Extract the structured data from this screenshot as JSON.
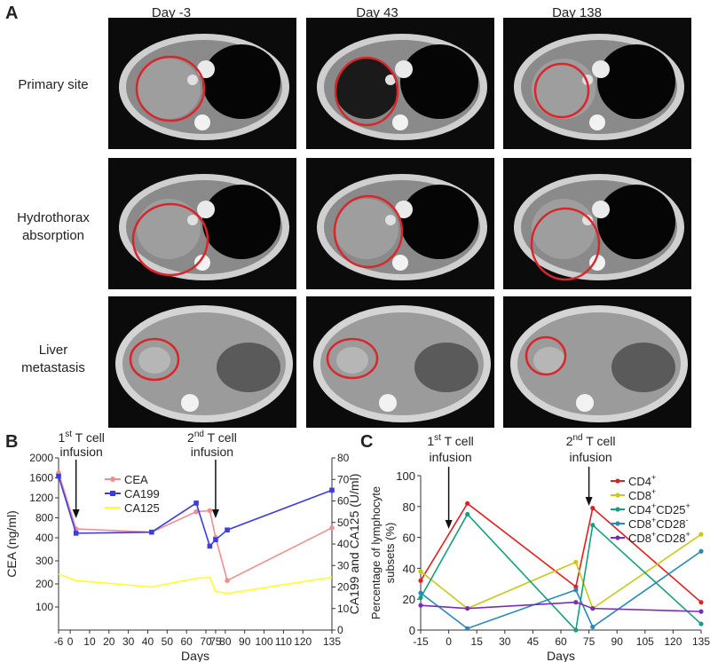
{
  "panel_a": {
    "letter": "A",
    "columns": [
      "Day -3",
      "Day 43",
      "Day 138"
    ],
    "rows": [
      {
        "label_lines": [
          "Primary site"
        ]
      },
      {
        "label_lines": [
          "Hydrothorax",
          "absorption"
        ]
      },
      {
        "label_lines": [
          "Liver",
          "metastasis"
        ]
      }
    ],
    "marker_color": "#d8262a"
  },
  "chart_data": [
    {
      "panel": "B",
      "type": "line",
      "xlabel": "Days",
      "ylabel_left": "CEA (ng/ml)",
      "ylabel_right": "CA199 and CA125 (U/ml)",
      "xticks": [
        -6,
        0,
        10,
        20,
        30,
        40,
        50,
        60,
        70,
        75,
        80,
        90,
        100,
        110,
        120,
        135
      ],
      "yticks_left": [
        100,
        200,
        300,
        400,
        800,
        1200,
        1600,
        2000
      ],
      "ylim_left": [
        0,
        2000
      ],
      "yticks_right": [
        0,
        10,
        20,
        30,
        40,
        50,
        60,
        70,
        80
      ],
      "ylim_right": [
        0,
        80
      ],
      "annotations": [
        {
          "x": 3,
          "sup": "st",
          "lines": [
            "1",
            " T cell",
            "infusion"
          ]
        },
        {
          "x": 75,
          "sup": "nd",
          "lines": [
            "2",
            " T cell",
            "infusion"
          ]
        }
      ],
      "legend": "upper-left",
      "series": [
        {
          "name": "CEA",
          "color": "#ef8f8f",
          "marker": "circle",
          "axis": "right",
          "x": [
            -6,
            3,
            42,
            65,
            72,
            75,
            81,
            135
          ],
          "y": [
            73,
            47,
            45.5,
            55,
            55.5,
            43,
            23,
            47.5
          ]
        },
        {
          "name": "CA199",
          "color": "#3c3ce0",
          "marker": "square",
          "axis": "right",
          "x": [
            -6,
            3,
            42,
            65,
            72,
            75,
            81,
            135
          ],
          "y": [
            71.5,
            45,
            45.5,
            59,
            39,
            42,
            46.5,
            65
          ]
        },
        {
          "name": "CA125",
          "color": "#ffff2a",
          "marker": "none",
          "axis": "right",
          "x": [
            -6,
            3,
            42,
            65,
            72,
            75,
            81,
            135
          ],
          "y": [
            26,
            23,
            20,
            24,
            24.5,
            18,
            17,
            24.5
          ]
        }
      ]
    },
    {
      "panel": "C",
      "type": "line",
      "xlabel": "Days",
      "ylabel": "Percentage of lymphocyte subsets (%)",
      "xticks": [
        -15,
        0,
        15,
        30,
        45,
        60,
        75,
        90,
        105,
        120,
        135
      ],
      "xlim": [
        -15,
        135
      ],
      "yticks": [
        0,
        20,
        40,
        60,
        80,
        100
      ],
      "ylim": [
        0,
        100
      ],
      "annotations": [
        {
          "x": 0,
          "sup": "st",
          "lines": [
            "1",
            " T cell",
            "infusion"
          ]
        },
        {
          "x": 75,
          "sup": "nd",
          "lines": [
            "2",
            " T cell",
            "infusion"
          ]
        }
      ],
      "legend": "upper-right",
      "series": [
        {
          "name": "CD4",
          "sup": "+",
          "color": "#e02020",
          "x": [
            -15,
            10,
            68,
            77,
            135
          ],
          "y": [
            32,
            82,
            28,
            79,
            18
          ]
        },
        {
          "name": "CD8",
          "sup": "+",
          "color": "#c8c81a",
          "x": [
            -15,
            10,
            68,
            77,
            135
          ],
          "y": [
            38,
            14,
            44,
            14,
            62
          ]
        },
        {
          "name": "CD4",
          "sup": "+",
          "name2": "CD25",
          "sup2": "+",
          "color": "#14a07a",
          "x": [
            -15,
            10,
            68,
            77,
            135
          ],
          "y": [
            21,
            75,
            0,
            68,
            4
          ]
        },
        {
          "name": "CD8",
          "sup": "+",
          "name2": "CD28",
          "sup2": "-",
          "color": "#2a87b8",
          "x": [
            -15,
            10,
            68,
            77,
            135
          ],
          "y": [
            24,
            1,
            26,
            2,
            51
          ]
        },
        {
          "name": "CD8",
          "sup": "+",
          "name2": "CD28",
          "sup2": "+",
          "color": "#7a2cb8",
          "x": [
            -15,
            10,
            68,
            77,
            135
          ],
          "y": [
            16,
            14,
            18,
            14,
            12
          ]
        }
      ]
    }
  ]
}
